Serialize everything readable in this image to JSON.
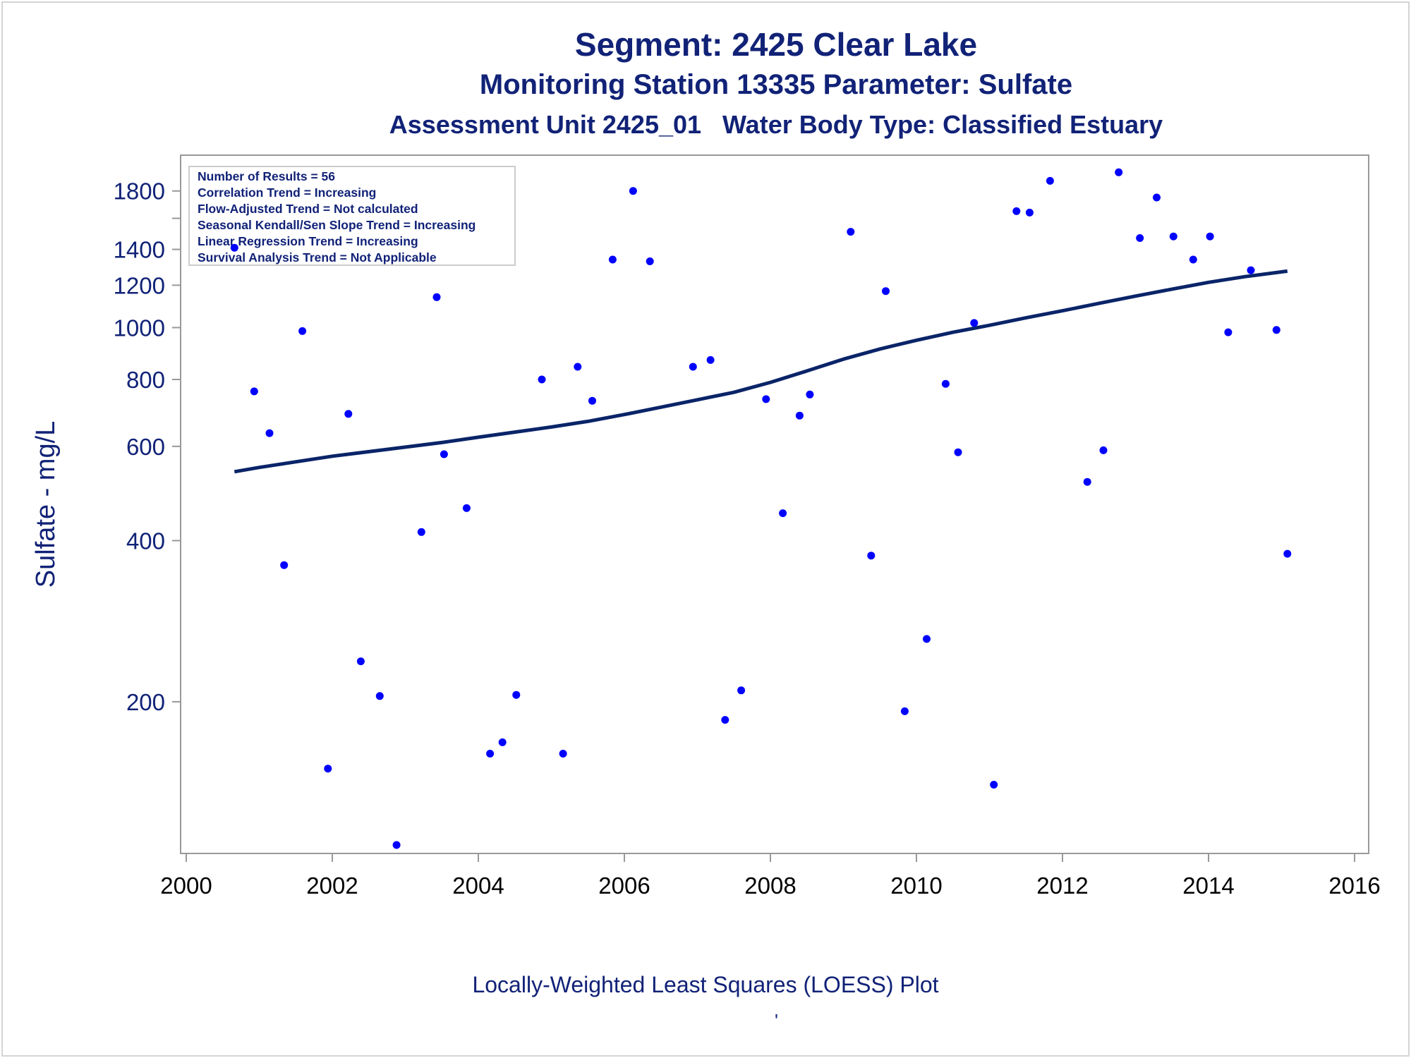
{
  "titles": {
    "line1": "Segment: 2425  Clear Lake",
    "line2": "Monitoring Station 13335 Parameter: Sulfate",
    "line3": "Assessment Unit 2425_01   Water Body Type: Classified Estuary"
  },
  "footnote": "Locally-Weighted Least Squares (LOESS) Plot",
  "footnote_mark": "'",
  "stats": [
    "Number of Results = 56",
    "Correlation Trend = Increasing",
    "Flow-Adjusted Trend = Not calculated",
    "Seasonal Kendall/Sen Slope Trend = Increasing",
    "Linear Regression Trend = Increasing",
    "Survival Analysis Trend = Not Applicable"
  ],
  "colors": {
    "title": "#112277",
    "points": "#0000ff",
    "loess_line": "#0a2468",
    "axis": "#999999"
  },
  "chart_data": {
    "type": "scatter",
    "ylabel": "Sulfate - mg/L",
    "xlabel": "",
    "y_scale": "log",
    "xlim": [
      2000,
      2016
    ],
    "ylim": [
      108,
      2000
    ],
    "x_ticks": [
      2000,
      2002,
      2004,
      2006,
      2008,
      2010,
      2012,
      2014,
      2016
    ],
    "y_ticks_labeled": [
      200,
      400,
      600,
      800,
      1000,
      1200,
      1400,
      1800
    ],
    "y_ticks_minor": [
      1600
    ],
    "grid": false,
    "series": [
      {
        "kind": "points",
        "points": [
          [
            2000.66,
            1410
          ],
          [
            2000.93,
            760
          ],
          [
            2001.14,
            635
          ],
          [
            2001.34,
            360
          ],
          [
            2001.59,
            985
          ],
          [
            2001.94,
            150
          ],
          [
            2002.22,
            690
          ],
          [
            2002.39,
            238
          ],
          [
            2002.65,
            205
          ],
          [
            2002.88,
            108
          ],
          [
            2003.22,
            415
          ],
          [
            2003.43,
            1140
          ],
          [
            2003.53,
            580
          ],
          [
            2003.84,
            460
          ],
          [
            2004.16,
            160
          ],
          [
            2004.33,
            168
          ],
          [
            2004.52,
            206
          ],
          [
            2004.87,
            800
          ],
          [
            2005.16,
            160
          ],
          [
            2005.36,
            845
          ],
          [
            2005.56,
            730
          ],
          [
            2005.84,
            1340
          ],
          [
            2006.12,
            1800
          ],
          [
            2006.35,
            1330
          ],
          [
            2006.94,
            845
          ],
          [
            2007.18,
            870
          ],
          [
            2007.38,
            185
          ],
          [
            2007.6,
            210
          ],
          [
            2007.94,
            735
          ],
          [
            2008.17,
            450
          ],
          [
            2008.4,
            685
          ],
          [
            2008.54,
            750
          ],
          [
            2009.1,
            1510
          ],
          [
            2009.38,
            375
          ],
          [
            2009.58,
            1170
          ],
          [
            2009.84,
            192
          ],
          [
            2010.14,
            262
          ],
          [
            2010.4,
            785
          ],
          [
            2010.57,
            585
          ],
          [
            2010.79,
            1020
          ],
          [
            2011.06,
            140
          ],
          [
            2011.37,
            1650
          ],
          [
            2011.55,
            1640
          ],
          [
            2011.83,
            1880
          ],
          [
            2012.34,
            515
          ],
          [
            2012.56,
            590
          ],
          [
            2012.77,
            1950
          ],
          [
            2013.06,
            1470
          ],
          [
            2013.29,
            1750
          ],
          [
            2013.52,
            1480
          ],
          [
            2013.79,
            1340
          ],
          [
            2014.02,
            1480
          ],
          [
            2014.27,
            980
          ],
          [
            2014.58,
            1280
          ],
          [
            2014.93,
            990
          ],
          [
            2015.08,
            378
          ]
        ]
      },
      {
        "kind": "loess",
        "points": [
          [
            2000.66,
            538
          ],
          [
            2001.0,
            548
          ],
          [
            2002.0,
            575
          ],
          [
            2003.0,
            598
          ],
          [
            2003.5,
            610
          ],
          [
            2004.0,
            624
          ],
          [
            2004.5,
            638
          ],
          [
            2005.0,
            652
          ],
          [
            2005.5,
            668
          ],
          [
            2006.0,
            688
          ],
          [
            2006.5,
            710
          ],
          [
            2007.0,
            733
          ],
          [
            2007.5,
            757
          ],
          [
            2008.0,
            790
          ],
          [
            2008.5,
            830
          ],
          [
            2009.0,
            873
          ],
          [
            2009.5,
            912
          ],
          [
            2010.0,
            947
          ],
          [
            2010.5,
            980
          ],
          [
            2011.0,
            1010
          ],
          [
            2011.5,
            1043
          ],
          [
            2012.0,
            1075
          ],
          [
            2012.5,
            1110
          ],
          [
            2013.0,
            1145
          ],
          [
            2013.5,
            1180
          ],
          [
            2014.0,
            1215
          ],
          [
            2014.5,
            1245
          ],
          [
            2015.08,
            1275
          ]
        ]
      }
    ]
  }
}
